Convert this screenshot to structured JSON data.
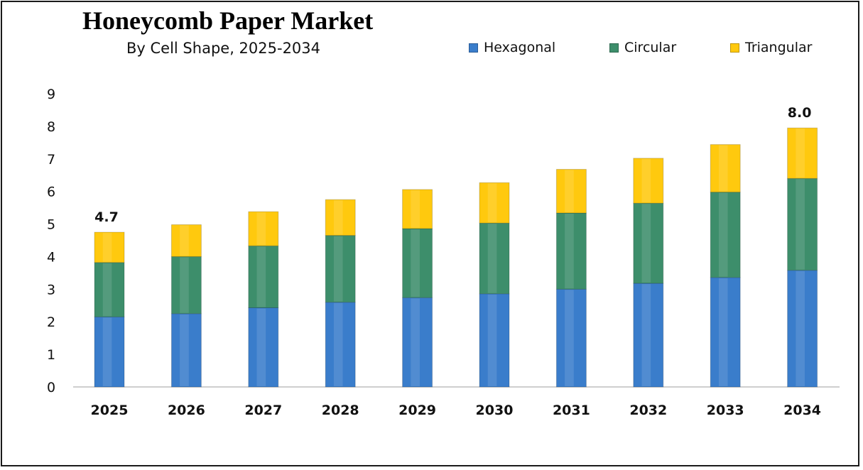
{
  "chart_data": {
    "type": "bar",
    "stacked": true,
    "title": "Honeycomb Paper Market",
    "subtitle": "By Cell Shape, 2025-2034",
    "xlabel": "",
    "ylabel": "",
    "ylim": [
      0,
      9
    ],
    "yticks": [
      0,
      1,
      2,
      3,
      4,
      5,
      6,
      7,
      8,
      9
    ],
    "grid": false,
    "legend_position": "top-right",
    "categories": [
      "2025",
      "2026",
      "2027",
      "2028",
      "2029",
      "2030",
      "2031",
      "2032",
      "2033",
      "2034"
    ],
    "series": [
      {
        "name": "Hexagonal",
        "color": "#3a7dcb",
        "values": [
          2.15,
          2.25,
          2.43,
          2.6,
          2.74,
          2.86,
          3.0,
          3.18,
          3.36,
          3.58
        ]
      },
      {
        "name": "Circular",
        "color": "#3d8e6b",
        "values": [
          1.67,
          1.75,
          1.9,
          2.05,
          2.12,
          2.17,
          2.34,
          2.46,
          2.62,
          2.82
        ]
      },
      {
        "name": "Triangular",
        "color": "#ffc90e",
        "values": [
          0.93,
          0.98,
          1.05,
          1.1,
          1.2,
          1.24,
          1.34,
          1.38,
          1.46,
          1.55
        ]
      }
    ],
    "data_labels": [
      {
        "category": "2025",
        "text": "4.7"
      },
      {
        "category": "2034",
        "text": "8.0"
      }
    ]
  }
}
